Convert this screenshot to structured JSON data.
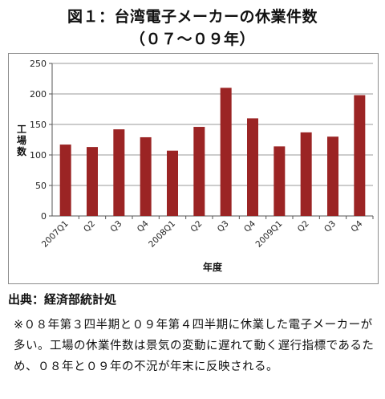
{
  "title_line1": "図１：台湾電子メーカーの休業件数",
  "title_line2": "（０７～０９年）",
  "source": "出典：経済部統計処",
  "note": "※０８年第３四半期と０９年第４四半期に休業した電子メーカーが多い。工場の休業件数は景気の変動に遅れて動く遅行指標であるため、０８年と０９年の不況が年末に反映される。",
  "colors": {
    "bar": "#9b2424",
    "grid": "#9a9a9a",
    "axis": "#555555"
  },
  "chart_data": {
    "type": "bar",
    "categories": [
      "2007Q1",
      "Q2",
      "Q3",
      "Q4",
      "2008Q1",
      "Q2",
      "Q3",
      "Q4",
      "2009Q1",
      "Q2",
      "Q3",
      "Q4"
    ],
    "values": [
      117,
      113,
      142,
      129,
      107,
      146,
      210,
      160,
      114,
      137,
      130,
      198
    ],
    "ylim": [
      0,
      250
    ],
    "yticks": [
      0,
      50,
      100,
      150,
      200,
      250
    ],
    "ylabel": "工場数",
    "xlabel": "年度",
    "grid": true,
    "legend": "none"
  }
}
